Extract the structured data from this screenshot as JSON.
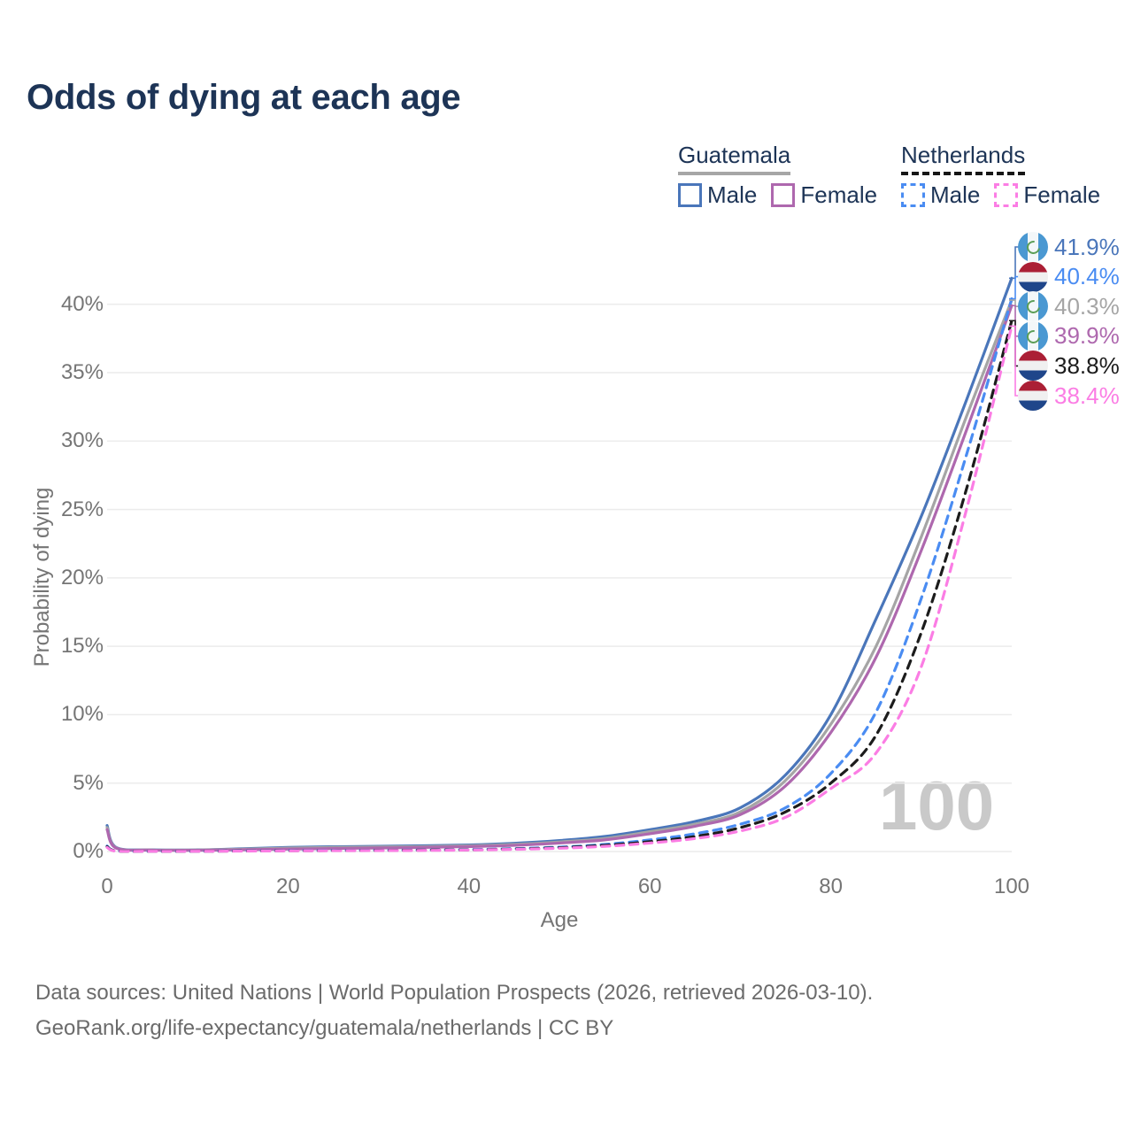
{
  "title": "Odds of dying at each age",
  "legend": {
    "groups": [
      {
        "label": "Guatemala",
        "line_style": "solid",
        "underline_color": "#a6a6a6",
        "items": [
          {
            "label": "Male",
            "color": "#4a76ba"
          },
          {
            "label": "Female",
            "color": "#ae68ae"
          }
        ]
      },
      {
        "label": "Netherlands",
        "line_style": "dashed",
        "underline_color": "#161616",
        "items": [
          {
            "label": "Male",
            "color": "#4a8cf2"
          },
          {
            "label": "Female",
            "color": "#fb7de4"
          }
        ]
      }
    ]
  },
  "chart_data": {
    "type": "line",
    "title": "Odds of dying at each age",
    "xlabel": "Age",
    "ylabel": "Probability of dying",
    "xlim": [
      0,
      100
    ],
    "ylim": [
      0,
      44
    ],
    "x_ticks": [
      0,
      20,
      40,
      60,
      80,
      100
    ],
    "y_ticks": [
      0,
      5,
      10,
      15,
      20,
      25,
      30,
      35,
      40
    ],
    "y_tick_suffix": "%",
    "grid": "horizontal",
    "gridline_color": "#ececec",
    "legend_position": "top-right",
    "watermark": "100",
    "x": [
      0,
      1,
      5,
      10,
      15,
      20,
      25,
      30,
      35,
      40,
      45,
      50,
      55,
      60,
      65,
      70,
      75,
      80,
      85,
      90,
      95,
      100
    ],
    "series": [
      {
        "name": "Guatemala Male",
        "country": "guatemala",
        "sex": "male",
        "style": "solid",
        "color": "#4a76ba",
        "end_label": "41.9%",
        "values": [
          1.9,
          0.3,
          0.12,
          0.12,
          0.2,
          0.3,
          0.35,
          0.38,
          0.42,
          0.48,
          0.6,
          0.8,
          1.1,
          1.6,
          2.2,
          3.2,
          5.6,
          10.0,
          17.0,
          24.5,
          33.0,
          41.9
        ]
      },
      {
        "name": "Guatemala",
        "country": "guatemala",
        "sex": "both",
        "style": "solid",
        "color": "#a5a5a5",
        "end_label": "40.3%",
        "values": [
          1.75,
          0.27,
          0.11,
          0.11,
          0.17,
          0.25,
          0.3,
          0.33,
          0.36,
          0.42,
          0.52,
          0.7,
          0.95,
          1.45,
          2.0,
          2.9,
          5.2,
          9.3,
          15.0,
          23.0,
          31.8,
          40.3
        ]
      },
      {
        "name": "Guatemala Female",
        "country": "guatemala",
        "sex": "female",
        "style": "solid",
        "color": "#ae68ae",
        "end_label": "39.9%",
        "values": [
          1.6,
          0.25,
          0.1,
          0.09,
          0.13,
          0.18,
          0.22,
          0.26,
          0.3,
          0.36,
          0.45,
          0.62,
          0.85,
          1.3,
          1.85,
          2.7,
          4.8,
          8.7,
          14.2,
          22.0,
          30.8,
          39.9
        ]
      },
      {
        "name": "Netherlands Male",
        "country": "netherlands",
        "sex": "male",
        "style": "dashed",
        "color": "#4a8cf2",
        "end_label": "40.4%",
        "values": [
          0.4,
          0.04,
          0.02,
          0.02,
          0.05,
          0.07,
          0.08,
          0.09,
          0.11,
          0.14,
          0.21,
          0.32,
          0.52,
          0.85,
          1.3,
          2.0,
          3.2,
          5.7,
          10.2,
          18.5,
          29.0,
          40.4
        ]
      },
      {
        "name": "Netherlands",
        "country": "netherlands",
        "sex": "both",
        "style": "dashed",
        "color": "#1c1c1c",
        "end_label": "38.8%",
        "values": [
          0.35,
          0.04,
          0.02,
          0.02,
          0.04,
          0.06,
          0.07,
          0.08,
          0.1,
          0.12,
          0.18,
          0.28,
          0.45,
          0.72,
          1.1,
          1.75,
          2.9,
          5.0,
          8.5,
          16.0,
          26.5,
          38.8
        ]
      },
      {
        "name": "Netherlands Female",
        "country": "netherlands",
        "sex": "female",
        "style": "dashed",
        "color": "#fb7de4",
        "end_label": "38.4%",
        "values": [
          0.3,
          0.03,
          0.015,
          0.015,
          0.03,
          0.05,
          0.06,
          0.07,
          0.08,
          0.11,
          0.16,
          0.24,
          0.38,
          0.62,
          0.95,
          1.5,
          2.5,
          4.6,
          7.2,
          13.5,
          25.0,
          38.4
        ]
      }
    ]
  },
  "footer": {
    "line1": "Data sources: United Nations | World Population Prospects (2026, retrieved 2026-03-10).",
    "line2": "GeoRank.org/life-expectancy/guatemala/netherlands | CC BY"
  }
}
